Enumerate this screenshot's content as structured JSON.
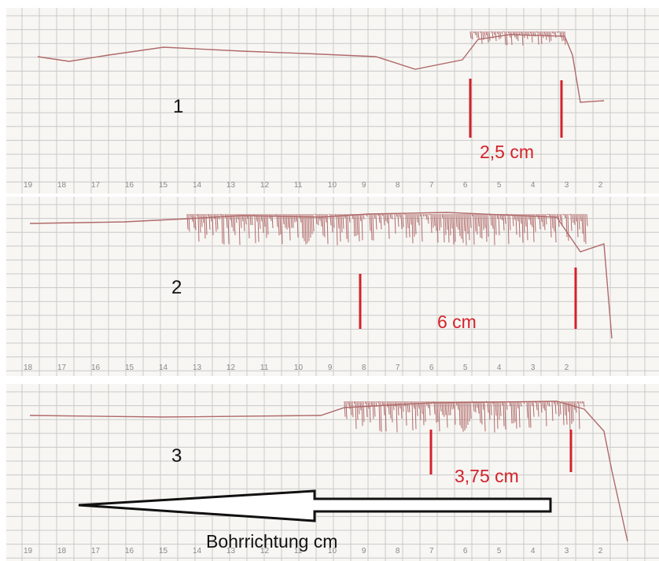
{
  "strips": [
    {
      "label": "1",
      "measurement": "2,5 cm",
      "ticks": [
        "19",
        "18",
        "17",
        "16",
        "15",
        "14",
        "13",
        "12",
        "11",
        "10",
        "9",
        "8",
        "7",
        "6",
        "5",
        "4",
        "3",
        "2"
      ]
    },
    {
      "label": "2",
      "measurement": "6 cm",
      "ticks": [
        "18",
        "17",
        "16",
        "15",
        "14",
        "13",
        "12",
        "11",
        "10",
        "9",
        "8",
        "7",
        "6",
        "5",
        "4",
        "3",
        "2"
      ]
    },
    {
      "label": "3",
      "measurement": "3,75 cm",
      "ticks": [
        "19",
        "18",
        "17",
        "16",
        "15",
        "14",
        "13",
        "12",
        "11",
        "10",
        "9",
        "8",
        "7",
        "6",
        "5",
        "4",
        "3",
        "2"
      ]
    }
  ],
  "arrow_caption": "Bohrrichtung cm",
  "colors": {
    "trace": "#b06a6a",
    "marker": "#d3222a",
    "grid": "#c9c9c9",
    "paper": "#f7f6f3"
  }
}
